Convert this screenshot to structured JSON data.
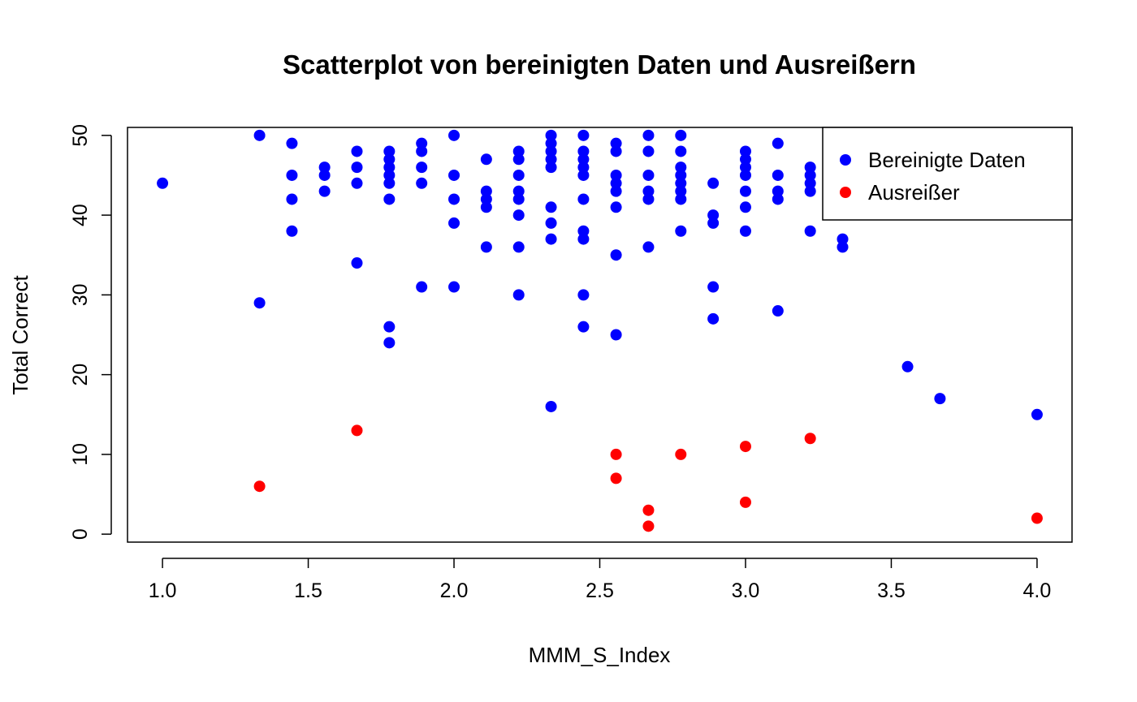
{
  "chart_data": {
    "type": "scatter",
    "title": "Scatterplot von bereinigten Daten und Ausreißern",
    "xlabel": "MMM_S_Index",
    "ylabel": "Total Correct",
    "xlim": [
      0.88,
      4.12
    ],
    "ylim": [
      -1,
      51
    ],
    "xticks": [
      "1.0",
      "1.5",
      "2.0",
      "2.5",
      "3.0",
      "3.5",
      "4.0"
    ],
    "yticks": [
      "0",
      "10",
      "20",
      "30",
      "40",
      "50"
    ],
    "grid": false,
    "legend_position": "top-right",
    "series": [
      {
        "name": "Bereinigte Daten",
        "color": "#0000FF",
        "points": [
          [
            1.0,
            44
          ],
          [
            1.333,
            50
          ],
          [
            1.333,
            29
          ],
          [
            1.444,
            49
          ],
          [
            1.444,
            45
          ],
          [
            1.444,
            42
          ],
          [
            1.444,
            38
          ],
          [
            1.556,
            46
          ],
          [
            1.556,
            45
          ],
          [
            1.556,
            43
          ],
          [
            1.667,
            48
          ],
          [
            1.667,
            46
          ],
          [
            1.667,
            44
          ],
          [
            1.667,
            34
          ],
          [
            1.778,
            48
          ],
          [
            1.778,
            47
          ],
          [
            1.778,
            46
          ],
          [
            1.778,
            45
          ],
          [
            1.778,
            44
          ],
          [
            1.778,
            42
          ],
          [
            1.778,
            26
          ],
          [
            1.778,
            24
          ],
          [
            1.889,
            49
          ],
          [
            1.889,
            48
          ],
          [
            1.889,
            46
          ],
          [
            1.889,
            44
          ],
          [
            1.889,
            31
          ],
          [
            2.0,
            50
          ],
          [
            2.0,
            45
          ],
          [
            2.0,
            42
          ],
          [
            2.0,
            39
          ],
          [
            2.0,
            31
          ],
          [
            2.111,
            47
          ],
          [
            2.111,
            43
          ],
          [
            2.111,
            42
          ],
          [
            2.111,
            41
          ],
          [
            2.111,
            36
          ],
          [
            2.222,
            48
          ],
          [
            2.222,
            47
          ],
          [
            2.222,
            45
          ],
          [
            2.222,
            43
          ],
          [
            2.222,
            42
          ],
          [
            2.222,
            40
          ],
          [
            2.222,
            36
          ],
          [
            2.222,
            30
          ],
          [
            2.333,
            50
          ],
          [
            2.333,
            49
          ],
          [
            2.333,
            48
          ],
          [
            2.333,
            47
          ],
          [
            2.333,
            46
          ],
          [
            2.333,
            41
          ],
          [
            2.333,
            39
          ],
          [
            2.333,
            37
          ],
          [
            2.333,
            16
          ],
          [
            2.444,
            50
          ],
          [
            2.444,
            48
          ],
          [
            2.444,
            47
          ],
          [
            2.444,
            46
          ],
          [
            2.444,
            45
          ],
          [
            2.444,
            42
          ],
          [
            2.444,
            38
          ],
          [
            2.444,
            37
          ],
          [
            2.444,
            30
          ],
          [
            2.444,
            26
          ],
          [
            2.556,
            49
          ],
          [
            2.556,
            48
          ],
          [
            2.556,
            45
          ],
          [
            2.556,
            44
          ],
          [
            2.556,
            43
          ],
          [
            2.556,
            41
          ],
          [
            2.556,
            35
          ],
          [
            2.556,
            25
          ],
          [
            2.667,
            50
          ],
          [
            2.667,
            48
          ],
          [
            2.667,
            45
          ],
          [
            2.667,
            43
          ],
          [
            2.667,
            42
          ],
          [
            2.667,
            36
          ],
          [
            2.778,
            50
          ],
          [
            2.778,
            48
          ],
          [
            2.778,
            46
          ],
          [
            2.778,
            45
          ],
          [
            2.778,
            44
          ],
          [
            2.778,
            43
          ],
          [
            2.778,
            42
          ],
          [
            2.778,
            38
          ],
          [
            2.889,
            44
          ],
          [
            2.889,
            40
          ],
          [
            2.889,
            39
          ],
          [
            2.889,
            31
          ],
          [
            2.889,
            27
          ],
          [
            3.0,
            48
          ],
          [
            3.0,
            47
          ],
          [
            3.0,
            46
          ],
          [
            3.0,
            45
          ],
          [
            3.0,
            43
          ],
          [
            3.0,
            41
          ],
          [
            3.0,
            38
          ],
          [
            3.111,
            49
          ],
          [
            3.111,
            45
          ],
          [
            3.111,
            43
          ],
          [
            3.111,
            42
          ],
          [
            3.111,
            28
          ],
          [
            3.222,
            46
          ],
          [
            3.222,
            45
          ],
          [
            3.222,
            44
          ],
          [
            3.222,
            43
          ],
          [
            3.222,
            38
          ],
          [
            3.333,
            37
          ],
          [
            3.333,
            36
          ],
          [
            3.556,
            21
          ],
          [
            3.667,
            17
          ],
          [
            4.0,
            15
          ]
        ]
      },
      {
        "name": "Ausreißer",
        "color": "#FF0000",
        "points": [
          [
            1.333,
            6
          ],
          [
            1.667,
            13
          ],
          [
            2.556,
            10
          ],
          [
            2.556,
            7
          ],
          [
            2.667,
            3
          ],
          [
            2.667,
            1
          ],
          [
            2.778,
            10
          ],
          [
            3.0,
            11
          ],
          [
            3.0,
            4
          ],
          [
            3.222,
            12
          ],
          [
            4.0,
            2
          ]
        ]
      }
    ]
  }
}
